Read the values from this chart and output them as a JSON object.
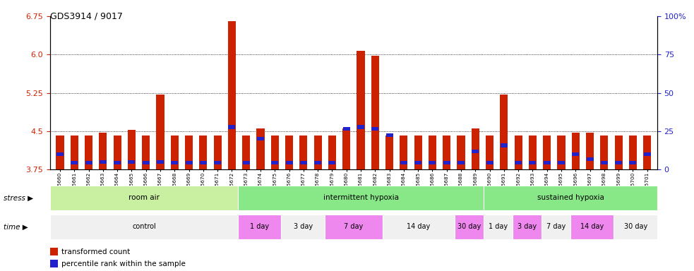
{
  "title": "GDS3914 / 9017",
  "samples": [
    "GSM215660",
    "GSM215661",
    "GSM215662",
    "GSM215663",
    "GSM215664",
    "GSM215665",
    "GSM215666",
    "GSM215667",
    "GSM215668",
    "GSM215669",
    "GSM215670",
    "GSM215671",
    "GSM215672",
    "GSM215673",
    "GSM215674",
    "GSM215675",
    "GSM215676",
    "GSM215677",
    "GSM215678",
    "GSM215679",
    "GSM215680",
    "GSM215681",
    "GSM215682",
    "GSM215683",
    "GSM215684",
    "GSM215685",
    "GSM215686",
    "GSM215687",
    "GSM215688",
    "GSM215689",
    "GSM215690",
    "GSM215691",
    "GSM215692",
    "GSM215693",
    "GSM215694",
    "GSM215695",
    "GSM215696",
    "GSM215697",
    "GSM215698",
    "GSM215699",
    "GSM215700",
    "GSM215701"
  ],
  "red_values": [
    4.42,
    4.42,
    4.42,
    4.47,
    4.42,
    4.53,
    4.42,
    5.22,
    4.42,
    4.42,
    4.42,
    4.42,
    6.65,
    4.42,
    4.55,
    4.42,
    4.42,
    4.42,
    4.42,
    4.42,
    4.55,
    6.07,
    5.97,
    4.42,
    4.42,
    4.42,
    4.42,
    4.42,
    4.42,
    4.55,
    4.42,
    5.22,
    4.42,
    4.42,
    4.42,
    4.42,
    4.47,
    4.47,
    4.42,
    4.42,
    4.42,
    4.42
  ],
  "blue_values": [
    4.05,
    3.88,
    3.88,
    3.9,
    3.88,
    3.9,
    3.88,
    3.9,
    3.88,
    3.88,
    3.88,
    3.88,
    4.58,
    3.88,
    4.35,
    3.88,
    3.88,
    3.88,
    3.88,
    3.88,
    4.55,
    4.58,
    4.55,
    4.42,
    3.88,
    3.88,
    3.88,
    3.88,
    3.88,
    4.1,
    3.88,
    4.22,
    3.88,
    3.88,
    3.88,
    3.88,
    4.05,
    3.95,
    3.88,
    3.88,
    3.88,
    4.05
  ],
  "y_min": 3.75,
  "y_max": 6.75,
  "y_ticks_red": [
    3.75,
    4.5,
    5.25,
    6.0,
    6.75
  ],
  "y_ticks_blue": [
    0,
    25,
    50,
    75,
    100
  ],
  "dotted_lines": [
    4.5,
    5.25,
    6.0
  ],
  "stress_groups": [
    {
      "label": "room air",
      "start": 0,
      "end": 13,
      "color": "#c8f0a0"
    },
    {
      "label": "intermittent hypoxia",
      "start": 13,
      "end": 30,
      "color": "#88e888"
    },
    {
      "label": "sustained hypoxia",
      "start": 30,
      "end": 42,
      "color": "#88e888"
    }
  ],
  "time_groups": [
    {
      "label": "control",
      "start": 0,
      "end": 13,
      "color": "#f0f0f0"
    },
    {
      "label": "1 day",
      "start": 13,
      "end": 16,
      "color": "#ee88ee"
    },
    {
      "label": "3 day",
      "start": 16,
      "end": 19,
      "color": "#f0f0f0"
    },
    {
      "label": "7 day",
      "start": 19,
      "end": 23,
      "color": "#ee88ee"
    },
    {
      "label": "14 day",
      "start": 23,
      "end": 28,
      "color": "#f0f0f0"
    },
    {
      "label": "30 day",
      "start": 28,
      "end": 30,
      "color": "#ee88ee"
    },
    {
      "label": "1 day",
      "start": 30,
      "end": 32,
      "color": "#f0f0f0"
    },
    {
      "label": "3 day",
      "start": 32,
      "end": 34,
      "color": "#ee88ee"
    },
    {
      "label": "7 day",
      "start": 34,
      "end": 36,
      "color": "#f0f0f0"
    },
    {
      "label": "14 day",
      "start": 36,
      "end": 39,
      "color": "#ee88ee"
    },
    {
      "label": "30 day",
      "start": 39,
      "end": 42,
      "color": "#f0f0f0"
    }
  ],
  "red_color": "#cc2200",
  "blue_color": "#2222cc",
  "bar_width": 0.55
}
